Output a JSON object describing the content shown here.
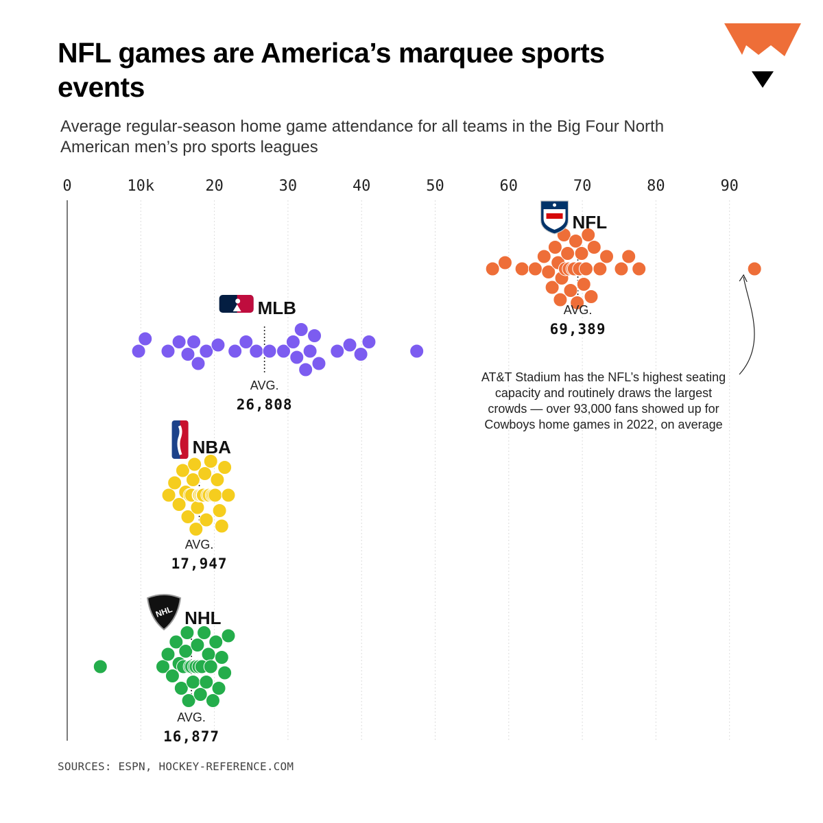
{
  "title": "NFL games are America’s marquee sports events",
  "subtitle": "Average regular-season home game attendance for all teams in the Big Four North American men’s pro sports leagues",
  "source": "SOURCES: ESPN, HOCKEY-REFERENCE.COM",
  "colors": {
    "nfl": "#ee6e38",
    "mlb": "#7c5cf0",
    "nba": "#f5cd1e",
    "nhl": "#24ad4b",
    "brand": "#ee6e38"
  },
  "chart_data": {
    "type": "scatter",
    "title": "NFL games are America’s marquee sports events",
    "subtitle": "Average regular-season home game attendance for all teams in the Big Four North American men’s pro sports leagues",
    "xlim": [
      0,
      95000
    ],
    "grid": true,
    "x_ticks": [
      {
        "value": 0,
        "label": "0"
      },
      {
        "value": 10000,
        "label": "10k"
      },
      {
        "value": 20000,
        "label": "20"
      },
      {
        "value": 30000,
        "label": "30"
      },
      {
        "value": 40000,
        "label": "40"
      },
      {
        "value": 50000,
        "label": "50"
      },
      {
        "value": 60000,
        "label": "60"
      },
      {
        "value": 70000,
        "label": "70"
      },
      {
        "value": 80000,
        "label": "80"
      },
      {
        "value": 90000,
        "label": "90"
      }
    ],
    "series": [
      {
        "name": "NFL",
        "key": "nfl",
        "logo": "nfl-shield",
        "avg_label": "AVG.",
        "avg_value": "69,389",
        "avg": 69389,
        "values": [
          57800,
          59500,
          61800,
          63600,
          64800,
          65400,
          65900,
          66300,
          66700,
          67000,
          67200,
          67500,
          67700,
          68000,
          68200,
          68400,
          68700,
          68900,
          69100,
          69300,
          69600,
          69900,
          70200,
          70500,
          70800,
          71200,
          71600,
          72400,
          73300,
          75300,
          76300,
          77700,
          93400
        ]
      },
      {
        "name": "MLB",
        "key": "mlb",
        "logo": "mlb-batter",
        "avg_label": "AVG.",
        "avg_value": "26,808",
        "avg": 26808,
        "values": [
          9700,
          10600,
          13700,
          15200,
          16400,
          17200,
          17800,
          18900,
          20500,
          22800,
          24300,
          25700,
          27500,
          29400,
          30700,
          31200,
          31800,
          32400,
          33000,
          33600,
          34200,
          36700,
          38400,
          39900,
          41000,
          47500
        ]
      },
      {
        "name": "NBA",
        "key": "nba",
        "logo": "nba-silhouette",
        "avg_label": "AVG.",
        "avg_value": "17,947",
        "avg": 17947,
        "values": [
          13800,
          14600,
          15200,
          15700,
          16100,
          16400,
          16700,
          16900,
          17100,
          17300,
          17500,
          17700,
          17900,
          18000,
          18200,
          18400,
          18500,
          18700,
          18900,
          19100,
          19300,
          19500,
          19700,
          19900,
          20100,
          20400,
          20700,
          21000,
          21400,
          21900
        ]
      },
      {
        "name": "NHL",
        "key": "nhl",
        "logo": "nhl-shield",
        "avg_label": "AVG.",
        "avg_value": "16,877",
        "avg": 16877,
        "values": [
          4500,
          13000,
          13700,
          14300,
          14800,
          15200,
          15500,
          15800,
          16100,
          16300,
          16500,
          16700,
          16900,
          17100,
          17300,
          17500,
          17700,
          17900,
          18100,
          18300,
          18600,
          18900,
          19200,
          19500,
          19800,
          20200,
          20600,
          21000,
          21400,
          21900
        ]
      }
    ],
    "annotation": {
      "lines": [
        "AT&T Stadium has the NFL’s highest seating",
        "capacity and routinely draws the largest",
        "crowds — over 93,000 fans showed up for",
        "Cowboys home games in 2022, on average"
      ]
    }
  }
}
